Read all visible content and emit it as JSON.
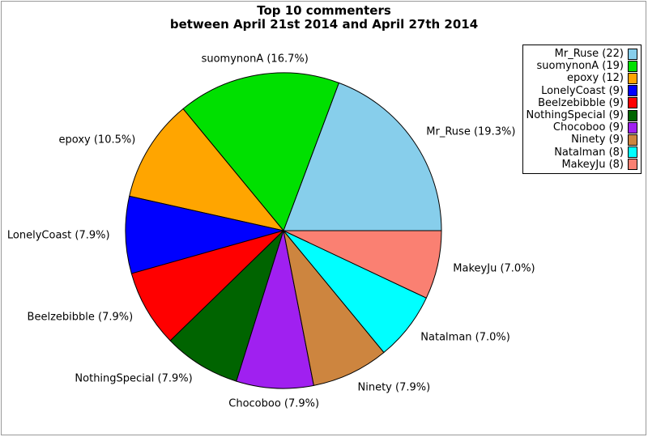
{
  "title": {
    "line1": "Top 10 commenters",
    "line2": "between April 21st 2014 and April 27th 2014"
  },
  "colors": {
    "frame_border": "#999999",
    "background": "#FFFFFF",
    "slice_outline": "#000000"
  },
  "chart_data": {
    "type": "pie",
    "title": "Top 10 commenters between April 21st 2014 and April 27th 2014",
    "start_angle_deg": 0,
    "direction": "counterclockwise",
    "legend_position": "upper right",
    "slices": [
      {
        "name": "Mr_Ruse",
        "count": 22,
        "percent": 19.3,
        "slice_label": "Mr_Ruse (19.3%)",
        "legend_label": "Mr_Ruse (22)",
        "color": "#87CEEB"
      },
      {
        "name": "suomynonA",
        "count": 19,
        "percent": 16.7,
        "slice_label": "suomynonA (16.7%)",
        "legend_label": "suomynonA (19)",
        "color": "#00E000"
      },
      {
        "name": "epoxy",
        "count": 12,
        "percent": 10.5,
        "slice_label": "epoxy (10.5%)",
        "legend_label": "epoxy (12)",
        "color": "#FFA500"
      },
      {
        "name": "LonelyCoast",
        "count": 9,
        "percent": 7.9,
        "slice_label": "LonelyCoast (7.9%)",
        "legend_label": "LonelyCoast (9)",
        "color": "#0000FF"
      },
      {
        "name": "Beelzebibble",
        "count": 9,
        "percent": 7.9,
        "slice_label": "Beelzebibble (7.9%)",
        "legend_label": "Beelzebibble (9)",
        "color": "#FF0000"
      },
      {
        "name": "NothingSpecial",
        "count": 9,
        "percent": 7.9,
        "slice_label": "NothingSpecial (7.9%)",
        "legend_label": "NothingSpecial (9)",
        "color": "#006400"
      },
      {
        "name": "Chocoboo",
        "count": 9,
        "percent": 7.9,
        "slice_label": "Chocoboo (7.9%)",
        "legend_label": "Chocoboo (9)",
        "color": "#A020F0"
      },
      {
        "name": "Ninety",
        "count": 9,
        "percent": 7.9,
        "slice_label": "Ninety (7.9%)",
        "legend_label": "Ninety (9)",
        "color": "#CD853F"
      },
      {
        "name": "Natalman",
        "count": 8,
        "percent": 7.0,
        "slice_label": "Natalman (7.0%)",
        "legend_label": "Natalman (8)",
        "color": "#00FFFF"
      },
      {
        "name": "MakeyJu",
        "count": 8,
        "percent": 7.0,
        "slice_label": "MakeyJu (7.0%)",
        "legend_label": "MakeyJu (8)",
        "color": "#FA8072"
      }
    ]
  }
}
